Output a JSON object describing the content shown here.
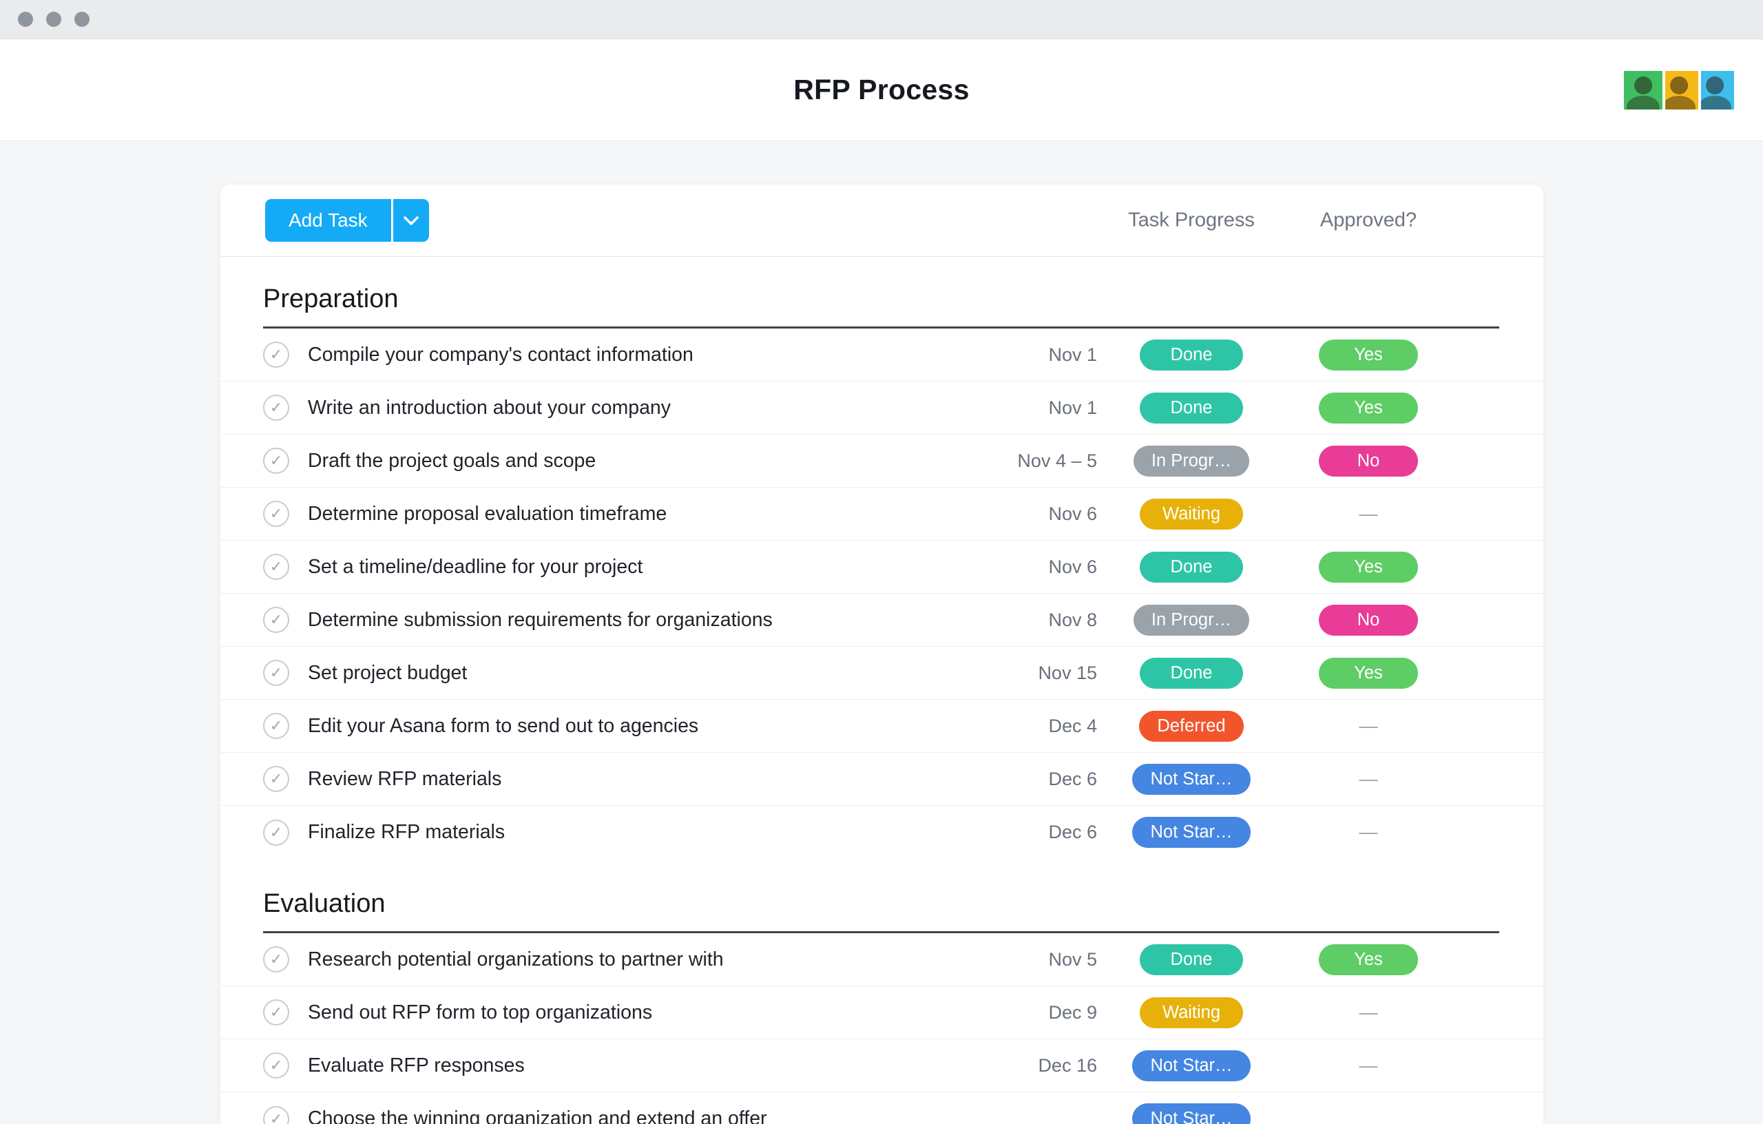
{
  "window": {
    "traffic_light_count": 3
  },
  "header": {
    "title": "RFP Process",
    "avatars": [
      {
        "name": "teammate-avatar-green",
        "bg": "#3fbf61"
      },
      {
        "name": "teammate-avatar-yellow",
        "bg": "#f6ba16"
      },
      {
        "name": "teammate-avatar-blue",
        "bg": "#3dbeec"
      }
    ]
  },
  "toolbar": {
    "add_task_label": "Add Task",
    "col_progress": "Task Progress",
    "col_approved": "Approved?"
  },
  "colors": {
    "accent_blue": "#14aaf5",
    "page_background": "#f4f6f7"
  },
  "badge_colors": {
    "done": "#2ec5a6",
    "yes": "#5ecd66",
    "in_progress": "#9aa2aa",
    "no": "#e93c96",
    "waiting": "#e7b10a",
    "deferred": "#f2552c",
    "not_started": "#4486e1"
  },
  "em_dash": "—",
  "sections": [
    {
      "title": "Preparation",
      "tasks": [
        {
          "name": "Compile your company's contact information",
          "date": "Nov 1",
          "progress": "Done",
          "progress_type": "done",
          "approved": "Yes",
          "approved_type": "yes"
        },
        {
          "name": "Write an introduction about your company",
          "date": "Nov 1",
          "progress": "Done",
          "progress_type": "done",
          "approved": "Yes",
          "approved_type": "yes"
        },
        {
          "name": "Draft the project goals and scope",
          "date": "Nov 4 – 5",
          "progress": "In Progr…",
          "progress_type": "in_progress",
          "approved": "No",
          "approved_type": "no"
        },
        {
          "name": "Determine proposal evaluation timeframe",
          "date": "Nov 6",
          "progress": "Waiting",
          "progress_type": "waiting",
          "approved": "",
          "approved_type": "dash"
        },
        {
          "name": "Set a timeline/deadline for your project",
          "date": "Nov 6",
          "progress": "Done",
          "progress_type": "done",
          "approved": "Yes",
          "approved_type": "yes"
        },
        {
          "name": "Determine submission requirements for organizations",
          "date": "Nov 8",
          "progress": "In Progr…",
          "progress_type": "in_progress",
          "approved": "No",
          "approved_type": "no"
        },
        {
          "name": "Set project budget",
          "date": "Nov 15",
          "progress": "Done",
          "progress_type": "done",
          "approved": "Yes",
          "approved_type": "yes"
        },
        {
          "name": "Edit your Asana form to send out to agencies",
          "date": "Dec 4",
          "progress": "Deferred",
          "progress_type": "deferred",
          "approved": "",
          "approved_type": "dash"
        },
        {
          "name": "Review RFP materials",
          "date": "Dec 6",
          "progress": "Not Star…",
          "progress_type": "not_started",
          "approved": "",
          "approved_type": "dash"
        },
        {
          "name": "Finalize RFP materials",
          "date": "Dec 6",
          "progress": "Not Star…",
          "progress_type": "not_started",
          "approved": "",
          "approved_type": "dash"
        }
      ]
    },
    {
      "title": "Evaluation",
      "tasks": [
        {
          "name": "Research potential organizations to partner with",
          "date": "Nov 5",
          "progress": "Done",
          "progress_type": "done",
          "approved": "Yes",
          "approved_type": "yes"
        },
        {
          "name": "Send out RFP form to top organizations",
          "date": "Dec 9",
          "progress": "Waiting",
          "progress_type": "waiting",
          "approved": "",
          "approved_type": "dash"
        },
        {
          "name": "Evaluate RFP responses",
          "date": "Dec 16",
          "progress": "Not Star…",
          "progress_type": "not_started",
          "approved": "",
          "approved_type": "dash"
        },
        {
          "name": "Choose the winning organization and extend an offer",
          "date": "",
          "progress": "Not Star…",
          "progress_type": "not_started",
          "approved": "",
          "approved_type": "none"
        }
      ]
    }
  ]
}
